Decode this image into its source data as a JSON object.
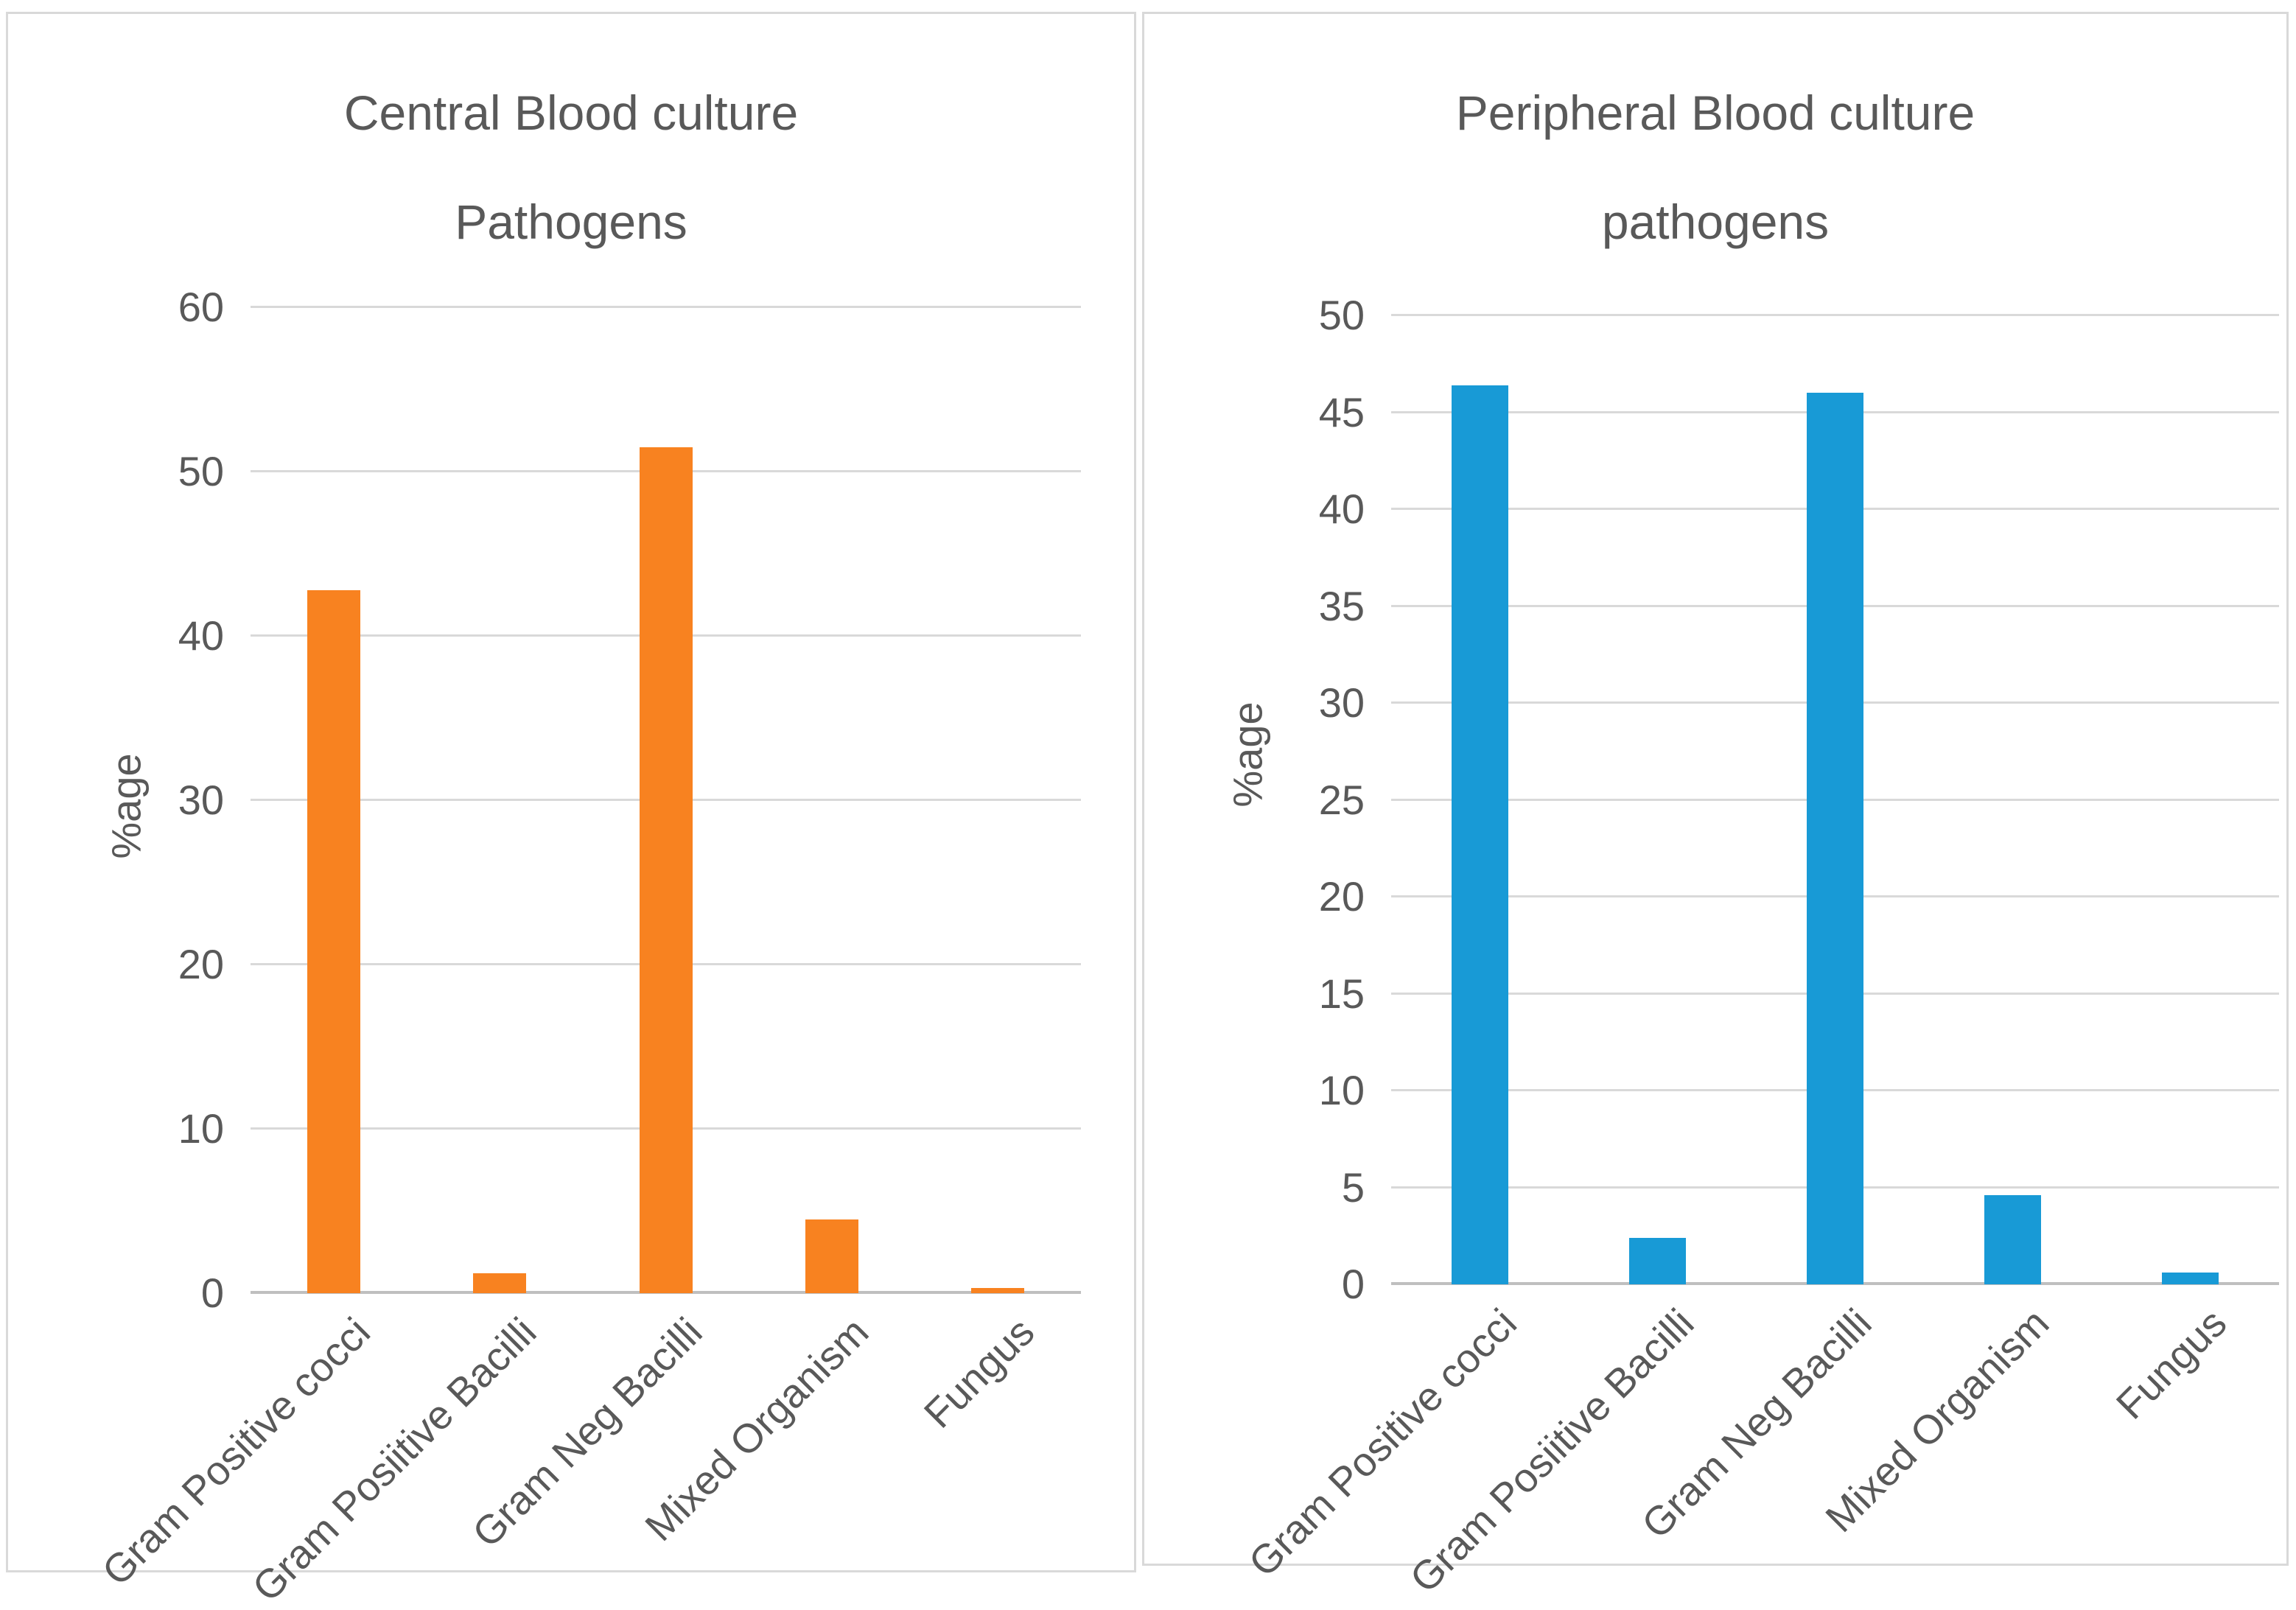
{
  "chart_data": [
    {
      "type": "bar",
      "title": "Central Blood culture Pathogens",
      "title_lines": [
        "Central Blood culture",
        "Pathogens"
      ],
      "ylabel": "%age",
      "xlabel": "",
      "categories": [
        "Gram Positive cocci",
        "Gram Posiitive Bacilli",
        "Gram Neg Bacilli",
        "Mixed Organism",
        "Fungus"
      ],
      "values": [
        42.8,
        1.2,
        51.5,
        4.5,
        0.3
      ],
      "ymax": 60,
      "ylim": [
        0,
        60
      ],
      "yticks": [
        0,
        10,
        20,
        30,
        40,
        50,
        60
      ],
      "grid": "horizontal",
      "legend": "none",
      "color": "#f88220"
    },
    {
      "type": "bar",
      "title": "Peripheral Blood culture pathogens",
      "title_lines": [
        "Peripheral Blood culture",
        "pathogens"
      ],
      "ylabel": "%age",
      "xlabel": "",
      "categories": [
        "Gram Positive cocci",
        "Gram Posiitive Bacilli",
        "Gram Neg Bacilli",
        "Mixed Organism",
        "Fungus"
      ],
      "values": [
        46.4,
        2.4,
        46.0,
        4.6,
        0.6
      ],
      "ymax": 50,
      "ylim": [
        0,
        50
      ],
      "yticks": [
        0,
        5,
        10,
        15,
        20,
        25,
        30,
        35,
        40,
        45,
        50
      ],
      "grid": "horizontal",
      "legend": "none",
      "color": "#189ad6"
    }
  ],
  "colors": {
    "orange_series": "#f88220",
    "blue_series": "#189ad6",
    "gridline": "#d9d9d9",
    "axis_line": "#bfbfbf",
    "text": "#595959",
    "panel_border": "#d9d9d9",
    "background": "#ffffff"
  }
}
